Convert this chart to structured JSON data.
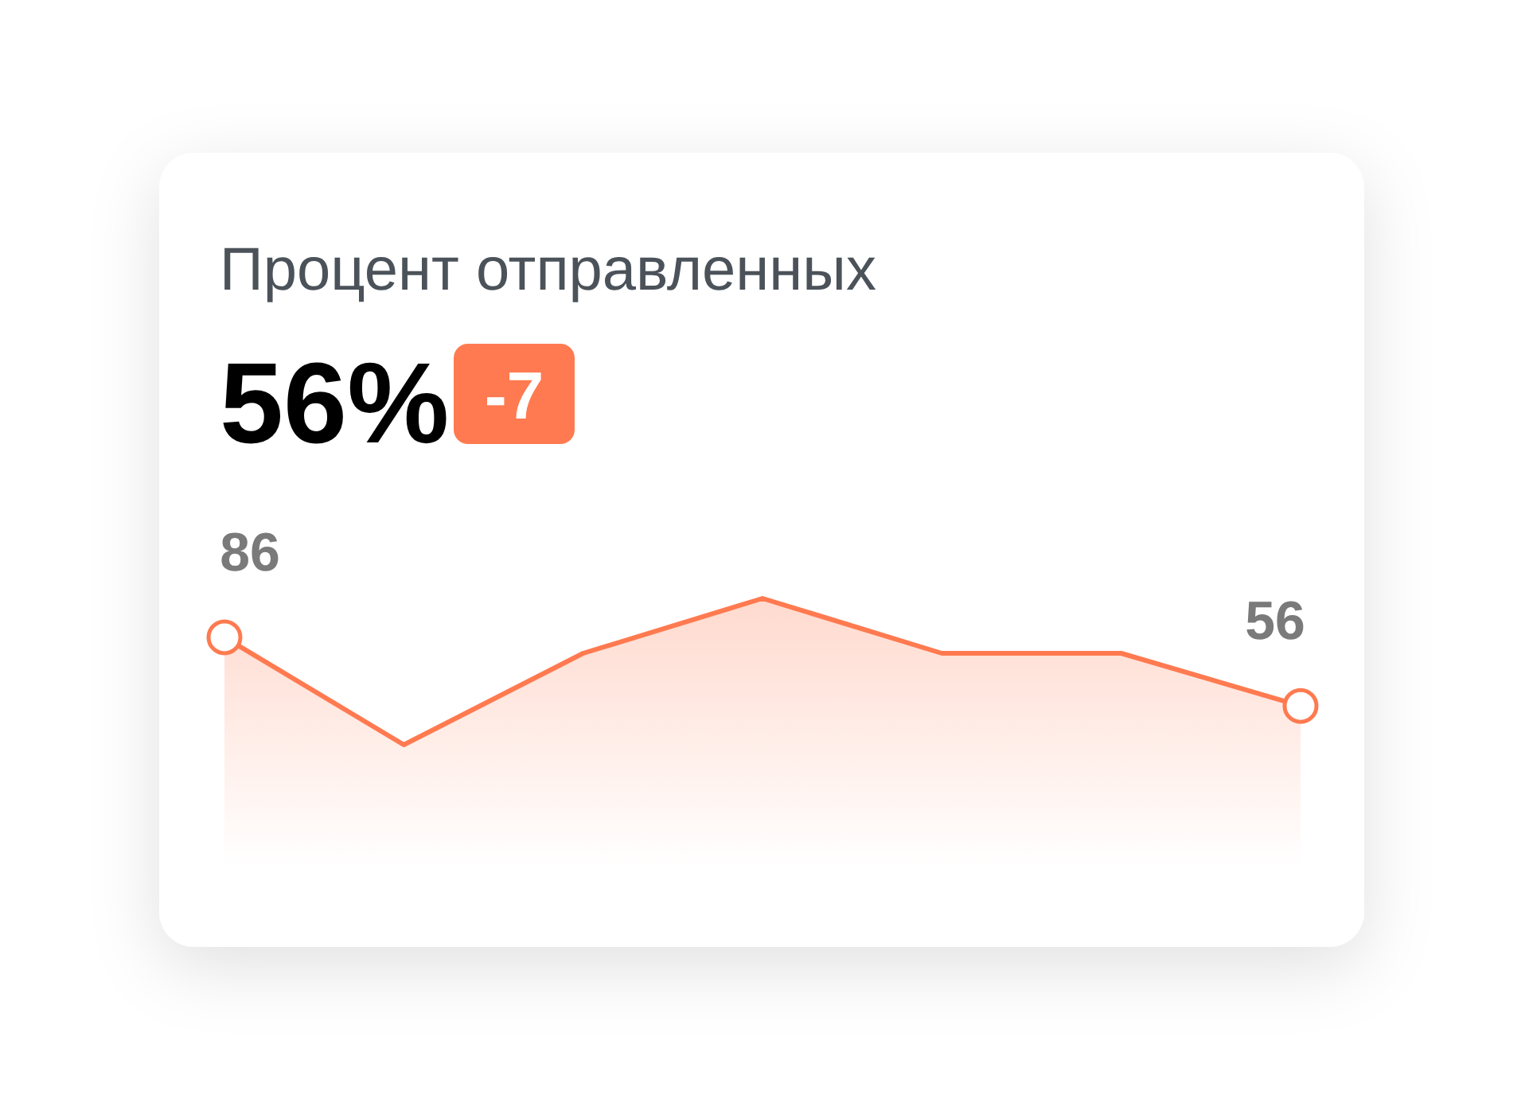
{
  "chart_data": {
    "type": "area",
    "title": "Процент отправленных",
    "annotations": [
      "56%",
      "-7"
    ],
    "categories": [
      null,
      null,
      null,
      null,
      null,
      null,
      null
    ],
    "series": [
      {
        "color": "#ff7a50",
        "values": [
          86,
          39,
          79,
          103,
          79,
          79,
          56
        ],
        "value_labels": [
          "86",
          null,
          null,
          null,
          null,
          null,
          "56"
        ]
      }
    ],
    "xlabel": null
  }
}
